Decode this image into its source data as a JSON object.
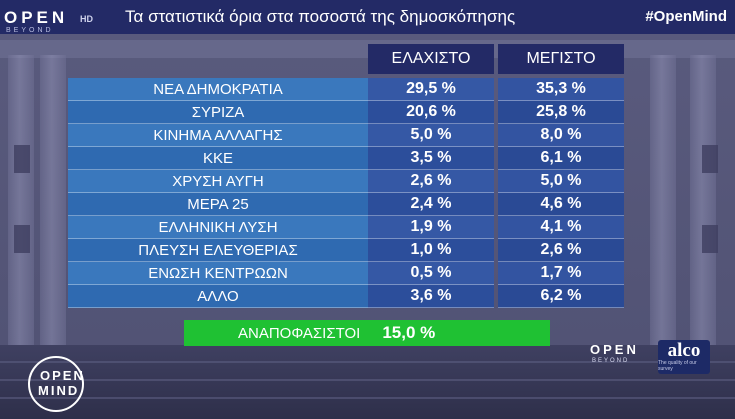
{
  "header": {
    "logo": "OPEN",
    "logo_hd": "HD",
    "logo_sub": "BEYOND",
    "title": "Τα στατιστικά όρια στα ποσοστά της δημοσκόπησης",
    "hashtag": "#OpenMind"
  },
  "table": {
    "col_min": "ΕΛΑΧΙΣΤΟ",
    "col_max": "ΜΕΓΙΣΤΟ",
    "rows": [
      {
        "party": "ΝΕΑ ΔΗΜΟΚΡΑΤΙΑ",
        "min": "29,5 %",
        "max": "35,3 %"
      },
      {
        "party": "ΣΥΡΙΖΑ",
        "min": "20,6 %",
        "max": "25,8 %"
      },
      {
        "party": "ΚΙΝΗΜΑ ΑΛΛΑΓΗΣ",
        "min": "5,0 %",
        "max": "8,0 %"
      },
      {
        "party": "ΚΚΕ",
        "min": "3,5 %",
        "max": "6,1 %"
      },
      {
        "party": "ΧΡΥΣΗ ΑΥΓΗ",
        "min": "2,6 %",
        "max": "5,0 %"
      },
      {
        "party": "ΜΕΡΑ 25",
        "min": "2,4 %",
        "max": "4,6 %"
      },
      {
        "party": "ΕΛΛΗΝΙΚΗ ΛΥΣΗ",
        "min": "1,9 %",
        "max": "4,1 %"
      },
      {
        "party": "ΠΛΕΥΣΗ ΕΛΕΥΘΕΡΙΑΣ",
        "min": "1,0 %",
        "max": "2,6 %"
      },
      {
        "party": "ΕΝΩΣΗ ΚΕΝΤΡΩΩΝ",
        "min": "0,5 %",
        "max": "1,7 %"
      },
      {
        "party": "ΑΛΛΟ",
        "min": "3,6 %",
        "max": "6,2 %"
      }
    ]
  },
  "undecided": {
    "label": "ΑΝΑΠΟΦΑΣΙΣΤΟΙ",
    "value": "15,0 %"
  },
  "footer": {
    "openmind_line1": "OPEN",
    "openmind_line2": "MIND",
    "open_small": "OPEN",
    "beyond_small": "BEYOND",
    "alco": "alco",
    "alco_sub": "The quality of our survey"
  },
  "colors": {
    "navy": "#232a66",
    "row_blue": "#3a78bd",
    "value_blue": "#3558a5",
    "green": "#1fc133"
  }
}
